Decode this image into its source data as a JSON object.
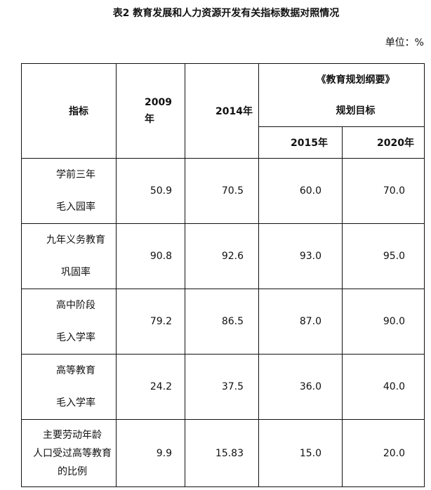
{
  "title": "表2 教育发展和人力资源开发有关指标数据对照情况",
  "unit": "单位：%",
  "header": {
    "indicator": "指标",
    "y2009_a": "2009",
    "y2009_b": "年",
    "y2014": "2014年",
    "plan_title": "《教育规划纲要》",
    "plan_sub": "规划目标",
    "y2015": "2015年",
    "y2020": "2020年"
  },
  "rows": [
    {
      "label": [
        "学前三年",
        "毛入园率"
      ],
      "v2009": "50.9",
      "v2014": "70.5",
      "v2015": "60.0",
      "v2020": "70.0"
    },
    {
      "label": [
        "九年义务教育",
        "巩固率"
      ],
      "v2009": "90.8",
      "v2014": "92.6",
      "v2015": "93.0",
      "v2020": "95.0"
    },
    {
      "label": [
        "高中阶段",
        "毛入学率"
      ],
      "v2009": "79.2",
      "v2014": "86.5",
      "v2015": "87.0",
      "v2020": "90.0"
    },
    {
      "label": [
        "高等教育",
        "毛入学率"
      ],
      "v2009": "24.2",
      "v2014": "37.5",
      "v2015": "36.0",
      "v2020": "40.0"
    },
    {
      "label": [
        "主要劳动年龄",
        "人口受过高等教育",
        "的比例"
      ],
      "v2009": "9.9",
      "v2014": "15.83",
      "v2015": "15.0",
      "v2020": "20.0"
    }
  ]
}
